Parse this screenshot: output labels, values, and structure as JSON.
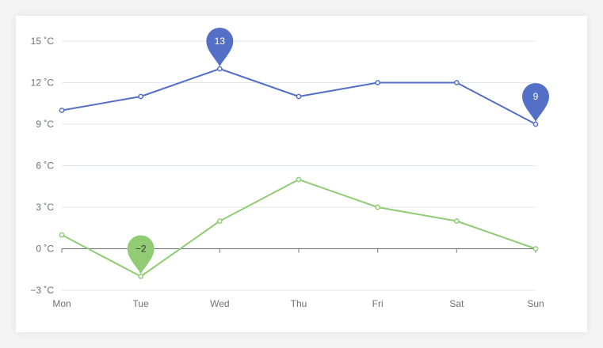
{
  "chart_data": {
    "type": "line",
    "categories": [
      "Mon",
      "Tue",
      "Wed",
      "Thu",
      "Fri",
      "Sat",
      "Sun"
    ],
    "series": [
      {
        "values": [
          10,
          11,
          13,
          11,
          12,
          12,
          9
        ],
        "color": "#5470c6",
        "max_label": "13",
        "min_label": "9"
      },
      {
        "values": [
          1,
          -2,
          2,
          5,
          3,
          2,
          0
        ],
        "color": "#91cc75",
        "min_label": "-2"
      }
    ],
    "y_ticks": [
      -3,
      0,
      3,
      6,
      9,
      12,
      15
    ],
    "y_tick_labels": [
      "−3 ˚C",
      "0 ˚C",
      "3 ˚C",
      "6 ˚C",
      "9 ˚C",
      "12 ˚C",
      "15 ˚C"
    ],
    "ylim": [
      -3,
      15
    ],
    "grid": true,
    "legend": false,
    "annotations": [
      {
        "series": 0,
        "index": 2,
        "text": "13"
      },
      {
        "series": 0,
        "index": 6,
        "text": "9"
      },
      {
        "series": 1,
        "index": 1,
        "text": "−2"
      }
    ]
  }
}
